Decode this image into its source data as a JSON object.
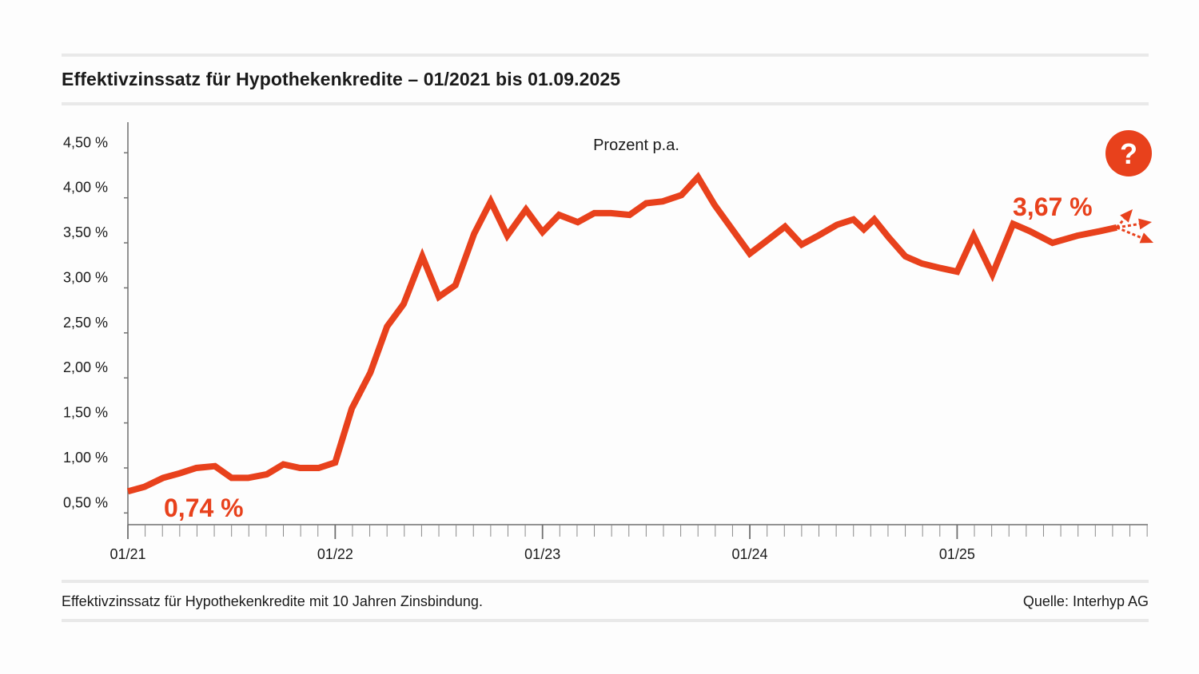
{
  "header": {
    "title": "Effektivzinssatz für Hypothekenkredite – 01/2021 bis 01.09.2025"
  },
  "footer": {
    "note": "Effektivzinssatz für Hypothekenkredite mit 10 Jahren Zinsbindung.",
    "source": "Quelle: Interhyp AG"
  },
  "help_icon": {
    "name": "question-mark-icon",
    "glyph": "?"
  },
  "colors": {
    "line": "#e8411c",
    "axis": "#6f6f6f",
    "rule": "#e9e9e9",
    "text": "#1a1a1a"
  },
  "chart_data": {
    "type": "line",
    "unit_label": "Prozent p.a.",
    "yticks": [
      0.5,
      1.0,
      1.5,
      2.0,
      2.5,
      3.0,
      3.5,
      4.0,
      4.5
    ],
    "ytick_labels": [
      "0,50 %",
      "1,00 %",
      "1,50 %",
      "2,00 %",
      "2,50 %",
      "3,00 %",
      "3,50 %",
      "4,00 %",
      "4,50 %"
    ],
    "ylim": [
      0.37,
      4.84
    ],
    "xlim": [
      2021.0,
      2025.92
    ],
    "xticks": [
      2021.0,
      2022.0,
      2023.0,
      2024.0,
      2025.0
    ],
    "xtick_labels": [
      "01/21",
      "01/22",
      "01/23",
      "01/24",
      "01/25"
    ],
    "grid": false,
    "start_label": "0,74 %",
    "end_label": "3,67  %",
    "series": [
      {
        "x": [
          2021.0,
          2021.08,
          2021.17,
          2021.25,
          2021.33,
          2021.42,
          2021.5,
          2021.58,
          2021.67,
          2021.75,
          2021.83,
          2021.92,
          2022.0,
          2022.08,
          2022.17,
          2022.25,
          2022.33,
          2022.42,
          2022.5,
          2022.58,
          2022.67,
          2022.75,
          2022.83,
          2022.92,
          2023.0,
          2023.08,
          2023.17,
          2023.25,
          2023.33,
          2023.42,
          2023.5,
          2023.58,
          2023.67,
          2023.75,
          2023.83,
          2024.0,
          2024.08,
          2024.17,
          2024.25,
          2024.33,
          2024.42,
          2024.5,
          2024.55,
          2024.6,
          2024.67,
          2024.75,
          2024.83,
          2024.92,
          2025.0,
          2025.08,
          2025.17,
          2025.27,
          2025.35,
          2025.46,
          2025.58,
          2025.69,
          2025.77
        ],
        "values": [
          0.74,
          0.79,
          0.89,
          0.94,
          1.0,
          1.02,
          0.89,
          0.89,
          0.93,
          1.04,
          1.0,
          1.0,
          1.06,
          1.66,
          2.06,
          2.57,
          2.82,
          3.35,
          2.9,
          3.03,
          3.6,
          3.96,
          3.58,
          3.87,
          3.62,
          3.81,
          3.73,
          3.83,
          3.83,
          3.81,
          3.94,
          3.96,
          4.03,
          4.23,
          3.92,
          3.38,
          3.52,
          3.68,
          3.48,
          3.58,
          3.7,
          3.76,
          3.65,
          3.76,
          3.56,
          3.35,
          3.27,
          3.22,
          3.18,
          3.58,
          3.15,
          3.71,
          3.63,
          3.5,
          3.58,
          3.63,
          3.67
        ]
      }
    ]
  }
}
